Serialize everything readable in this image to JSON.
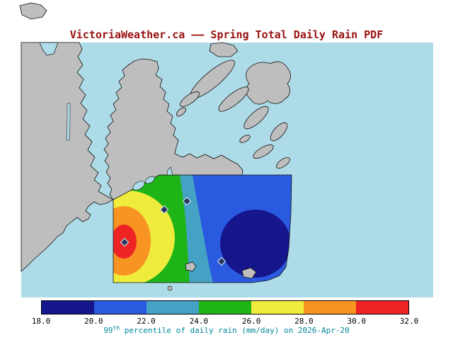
{
  "title": "VictoriaWeather.ca –– Spring Total Daily Rain PDF",
  "colorbar": {
    "ticks": [
      "18.0",
      "20.0",
      "22.0",
      "24.0",
      "26.0",
      "28.0",
      "30.0",
      "32.0"
    ],
    "colors": [
      "#15158c",
      "#2a5ae0",
      "#44a2c4",
      "#1fb418",
      "#f0ec3d",
      "#f79422",
      "#ee2424"
    ]
  },
  "caption": {
    "prefix": "99",
    "sup": "th",
    "rest": " percentile of daily rain (mm/day) on 2026-Apr-20"
  },
  "map_colors": {
    "water": "#addce8",
    "land": "#bebebe",
    "coast": "#111111"
  },
  "text_colors": {
    "title": "#991111",
    "caption": "#008898",
    "ticks": "#000000"
  },
  "marker": {
    "fill": "#2a3560",
    "outline": "#cfe9f2"
  },
  "chart_data": {
    "type": "heatmap",
    "title": "VictoriaWeather.ca –– Spring Total Daily Rain PDF",
    "caption": "99th percentile of daily rain (mm/day) on 2026-Apr-20",
    "variable": "99th percentile of daily rain",
    "units": "mm/day",
    "season": "Spring",
    "date": "2026-Apr-20",
    "colorbar_position": "bottom",
    "colorbar_min": 18.0,
    "colorbar_max": 32.0,
    "contour_interval": 2.0,
    "tick_values": [
      18.0,
      20.0,
      22.0,
      24.0,
      26.0,
      28.0,
      30.0,
      32.0
    ],
    "bands": [
      {
        "range_mm_per_day": "18-20",
        "color": "#15158c"
      },
      {
        "range_mm_per_day": "20-22",
        "color": "#2a5ae0"
      },
      {
        "range_mm_per_day": "22-24",
        "color": "#44a2c4"
      },
      {
        "range_mm_per_day": "24-26",
        "color": "#1fb418"
      },
      {
        "range_mm_per_day": "26-28",
        "color": "#f0ec3d"
      },
      {
        "range_mm_per_day": "28-30",
        "color": "#f79422"
      },
      {
        "range_mm_per_day": "30-32",
        "color": "#ee2424"
      }
    ],
    "spatial_pattern": {
      "maximum": {
        "value_mm_per_day": 32,
        "position": "west side of data region (concentric bullseye)"
      },
      "minimum": {
        "value_mm_per_day": 18,
        "position": "east-southeast of data region (dark blue blob)"
      },
      "gradient": "values decrease from west to east across the strait"
    },
    "station_markers": 4
  }
}
